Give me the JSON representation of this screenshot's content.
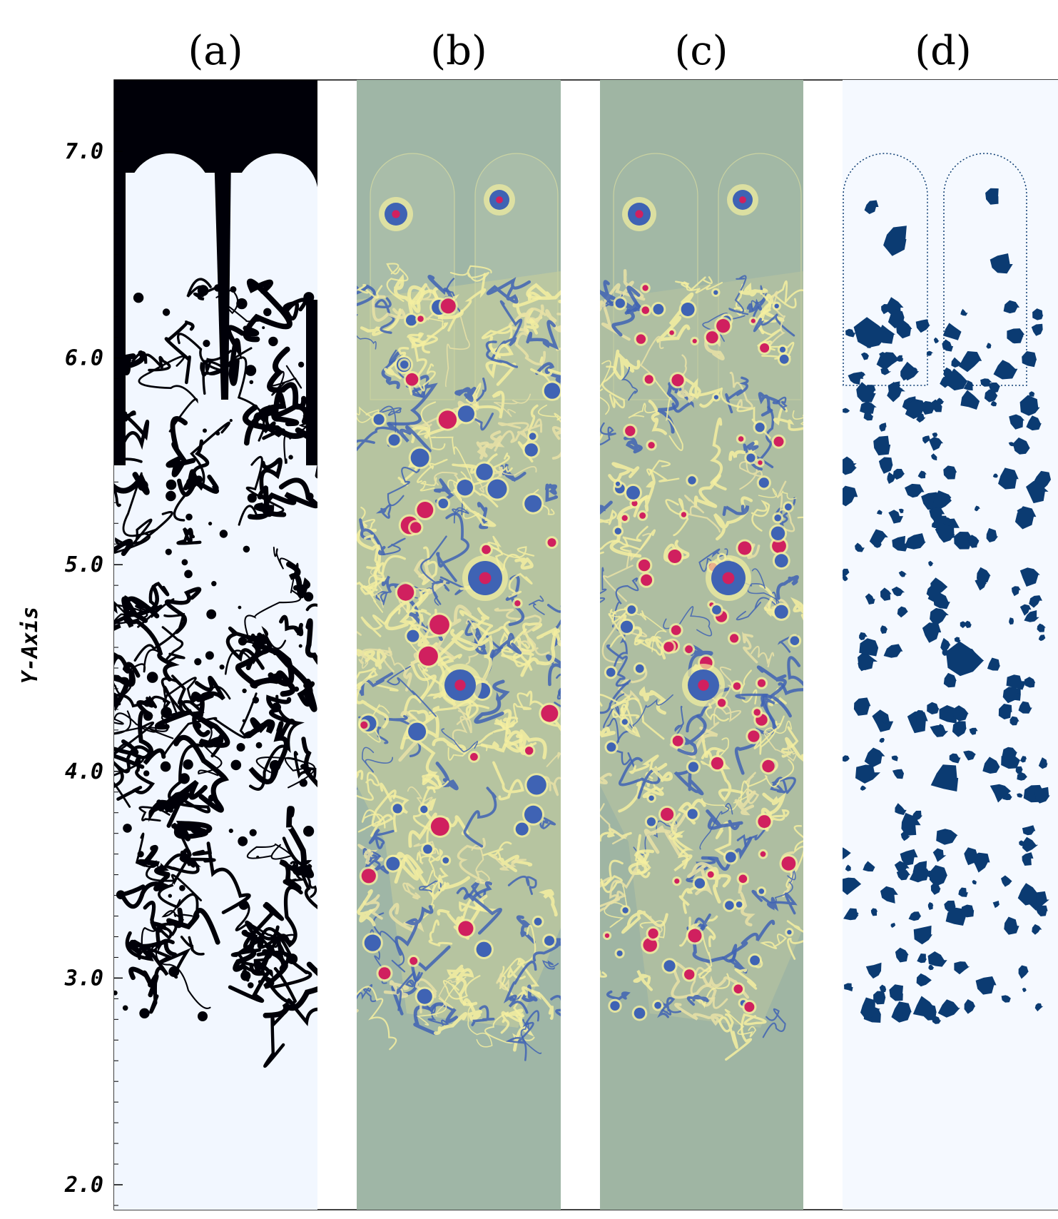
{
  "panels": [
    {
      "label": "(a)",
      "field": "phase-interface",
      "background": "#f2f7ff",
      "fluid_color": "#000008"
    },
    {
      "label": "(b)",
      "field": "vorticity-colormap",
      "background": "#9fb6a6"
    },
    {
      "label": "(c)",
      "field": "q-criterion-colormap",
      "background": "#9fb5a3"
    },
    {
      "label": "(d)",
      "field": "vortex-regions",
      "background": "#f5f9ff",
      "fluid_color": "#0b3b72"
    }
  ],
  "y_axis": {
    "title": "Y-Axis",
    "ticks": [
      {
        "value": 7.0,
        "label": "7.0"
      },
      {
        "value": 6.0,
        "label": "6.0"
      },
      {
        "value": 5.0,
        "label": "5.0"
      },
      {
        "value": 4.0,
        "label": "4.0"
      },
      {
        "value": 3.0,
        "label": "3.0"
      },
      {
        "value": 2.0,
        "label": "2.0"
      }
    ],
    "range": [
      1.65,
      7.35
    ]
  },
  "colors": {
    "cool": "#3f63b4",
    "warm": "#f4efa0",
    "hot": "#d0205f",
    "dark": "#000008",
    "navy": "#0b3b72"
  }
}
